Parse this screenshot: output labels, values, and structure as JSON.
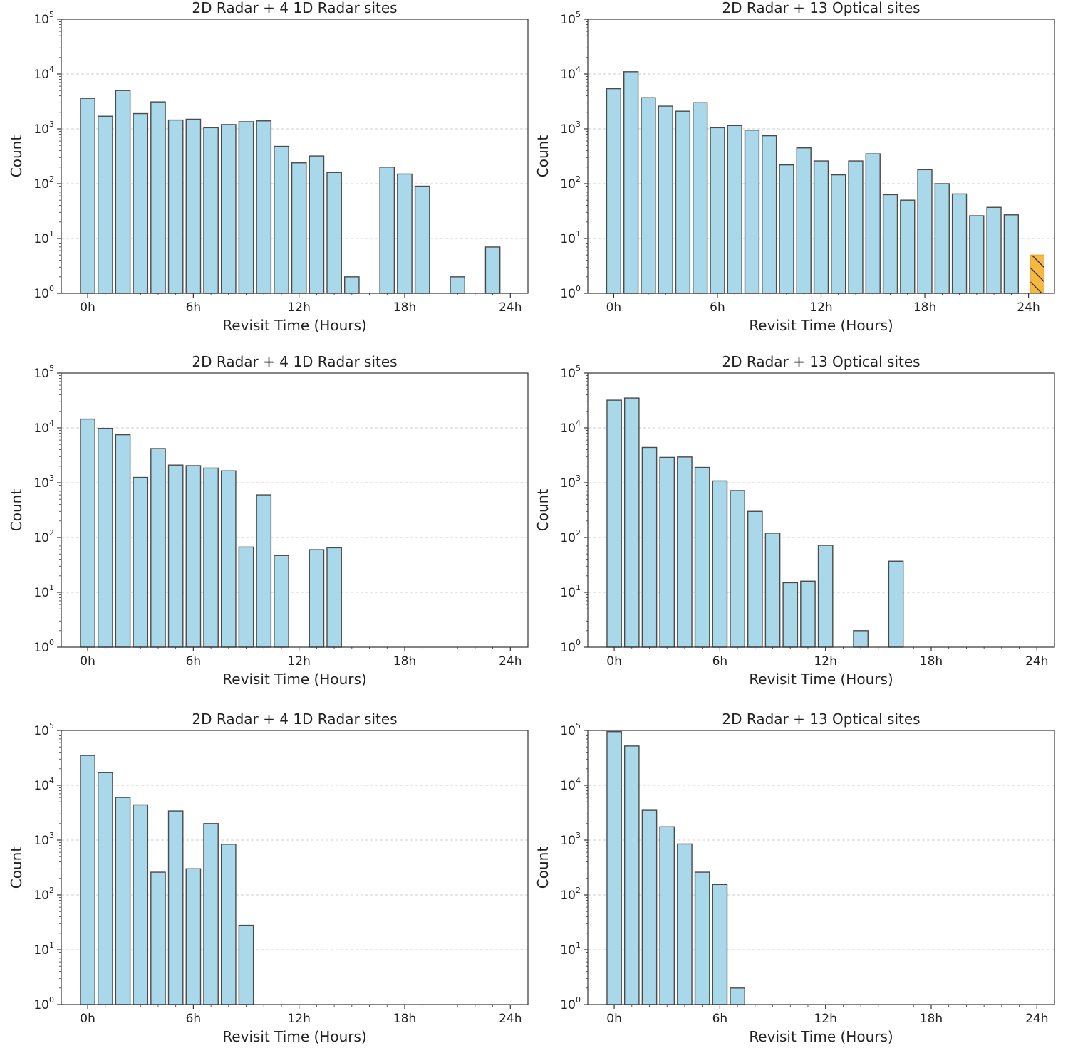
{
  "chart_data": [
    {
      "type": "bar",
      "title": "2D Radar + 4 1D Radar sites",
      "xlabel": "Revisit Time (Hours)",
      "ylabel": "Count",
      "yscale": "log",
      "ylim": [
        1,
        100000
      ],
      "xlim": [
        -1.5,
        25
      ],
      "xticks": [
        0,
        6,
        12,
        18,
        24
      ],
      "xtick_labels": [
        "0h",
        "6h",
        "12h",
        "18h",
        "24h"
      ],
      "grid": "y-dashed",
      "bar_color": "#a8d8ea",
      "x": [
        0,
        1,
        2,
        3,
        4,
        5,
        6,
        7,
        8,
        9,
        10,
        11,
        12,
        13,
        14,
        15,
        17,
        18,
        19,
        21,
        23
      ],
      "values": [
        3600,
        1700,
        5000,
        1900,
        3100,
        1450,
        1500,
        1050,
        1200,
        1350,
        1400,
        480,
        240,
        320,
        160,
        2,
        200,
        150,
        90,
        2,
        7
      ]
    },
    {
      "type": "bar",
      "title": "2D Radar + 13 Optical sites",
      "xlabel": "Revisit Time (Hours)",
      "ylabel": "Count",
      "yscale": "log",
      "ylim": [
        1,
        100000
      ],
      "xlim": [
        -1.5,
        25.5
      ],
      "xticks": [
        0,
        6,
        12,
        18,
        24
      ],
      "xtick_labels": [
        "0h",
        "6h",
        "12h",
        "18h",
        "24h"
      ],
      "grid": "y-dashed",
      "bar_color": "#a8d8ea",
      "x": [
        0,
        1,
        2,
        3,
        4,
        5,
        6,
        7,
        8,
        9,
        10,
        11,
        12,
        13,
        14,
        15,
        16,
        17,
        18,
        19,
        20,
        21,
        22,
        23
      ],
      "values": [
        5400,
        11000,
        3700,
        2600,
        2100,
        3000,
        1050,
        1150,
        950,
        750,
        220,
        450,
        260,
        145,
        260,
        350,
        63,
        50,
        180,
        100,
        65,
        26,
        37,
        27
      ],
      "highlight": {
        "x": 24.5,
        "value": 5,
        "color": "#f5b942",
        "pattern": "hatched"
      }
    },
    {
      "type": "bar",
      "title": "2D Radar + 4 1D Radar sites",
      "xlabel": "Revisit Time (Hours)",
      "ylabel": "Count",
      "yscale": "log",
      "ylim": [
        1,
        100000
      ],
      "xlim": [
        -1.5,
        25
      ],
      "xticks": [
        0,
        6,
        12,
        18,
        24
      ],
      "xtick_labels": [
        "0h",
        "6h",
        "12h",
        "18h",
        "24h"
      ],
      "grid": "y-dashed",
      "bar_color": "#a8d8ea",
      "x": [
        0,
        1,
        2,
        3,
        4,
        5,
        6,
        7,
        8,
        9,
        10,
        11,
        13,
        14
      ],
      "values": [
        14500,
        9800,
        7500,
        1250,
        4200,
        2100,
        2050,
        1850,
        1650,
        67,
        600,
        47,
        60,
        65
      ]
    },
    {
      "type": "bar",
      "title": "2D Radar + 13 Optical sites",
      "xlabel": "Revisit Time (Hours)",
      "ylabel": "Count",
      "yscale": "log",
      "ylim": [
        1,
        100000
      ],
      "xlim": [
        -1.5,
        25
      ],
      "xticks": [
        0,
        6,
        12,
        18,
        24
      ],
      "xtick_labels": [
        "0h",
        "6h",
        "12h",
        "18h",
        "24h"
      ],
      "grid": "y-dashed",
      "bar_color": "#a8d8ea",
      "x": [
        0,
        1,
        2,
        3,
        4,
        5,
        6,
        7,
        8,
        9,
        10,
        11,
        12,
        14,
        16
      ],
      "values": [
        32000,
        35000,
        4400,
        2900,
        2950,
        1900,
        1080,
        720,
        300,
        120,
        15,
        16,
        72,
        2,
        37
      ]
    },
    {
      "type": "bar",
      "title": "2D Radar + 4 1D Radar sites",
      "xlabel": "Revisit Time (Hours)",
      "ylabel": "Count",
      "yscale": "log",
      "ylim": [
        1,
        100000
      ],
      "xlim": [
        -1.5,
        25
      ],
      "xticks": [
        0,
        6,
        12,
        18,
        24
      ],
      "xtick_labels": [
        "0h",
        "6h",
        "12h",
        "18h",
        "24h"
      ],
      "grid": "y-dashed",
      "bar_color": "#a8d8ea",
      "x": [
        0,
        1,
        2,
        3,
        4,
        5,
        6,
        7,
        8,
        9
      ],
      "values": [
        35000,
        17000,
        6000,
        4400,
        260,
        3400,
        300,
        2000,
        840,
        28
      ]
    },
    {
      "type": "bar",
      "title": "2D Radar + 13 Optical sites",
      "xlabel": "Revisit Time (Hours)",
      "ylabel": "Count",
      "yscale": "log",
      "ylim": [
        1,
        100000
      ],
      "xlim": [
        -1.5,
        25
      ],
      "xticks": [
        0,
        6,
        12,
        18,
        24
      ],
      "xtick_labels": [
        "0h",
        "6h",
        "12h",
        "18h",
        "24h"
      ],
      "grid": "y-dashed",
      "bar_color": "#a8d8ea",
      "x": [
        0,
        1,
        2,
        3,
        4,
        5,
        6,
        7
      ],
      "values": [
        95000,
        52000,
        3500,
        1750,
        850,
        260,
        155,
        2
      ]
    }
  ]
}
